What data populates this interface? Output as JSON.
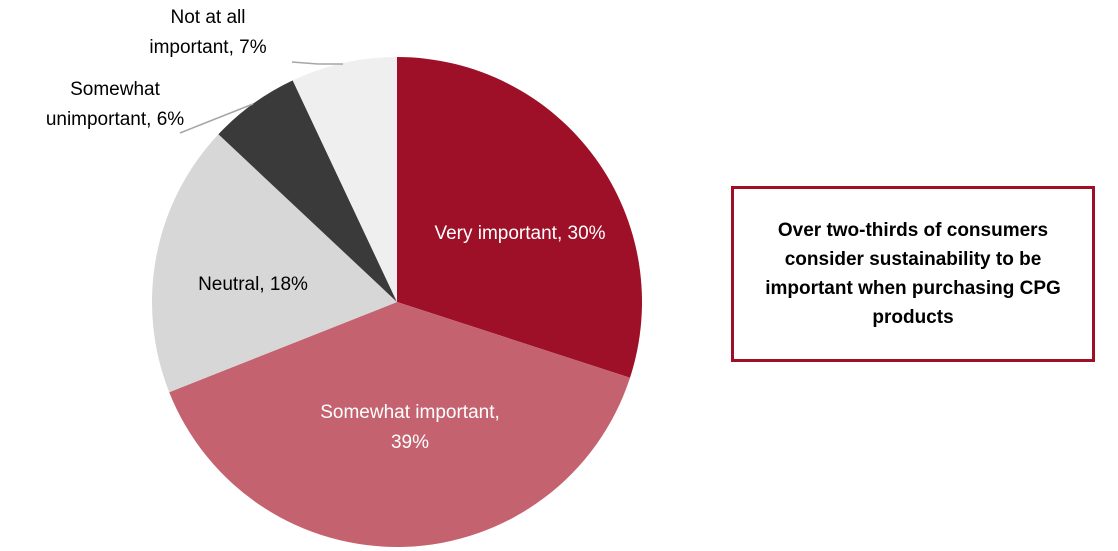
{
  "chart_data": {
    "type": "pie",
    "values": [
      30,
      39,
      18,
      6,
      7
    ],
    "value_labels": [
      "Very important, 30%",
      "Somewhat important, 39%",
      "Neutral, 18%",
      "Somewhat unimportant, 6%",
      "Not at all important, 7%"
    ],
    "colors": [
      "#9e1028",
      "#c4636f",
      "#d7d7d7",
      "#3a3a3a",
      "#efefef"
    ],
    "annotation": "Over two-thirds of consumers consider sustainability to be important when purchasing CPG products"
  }
}
